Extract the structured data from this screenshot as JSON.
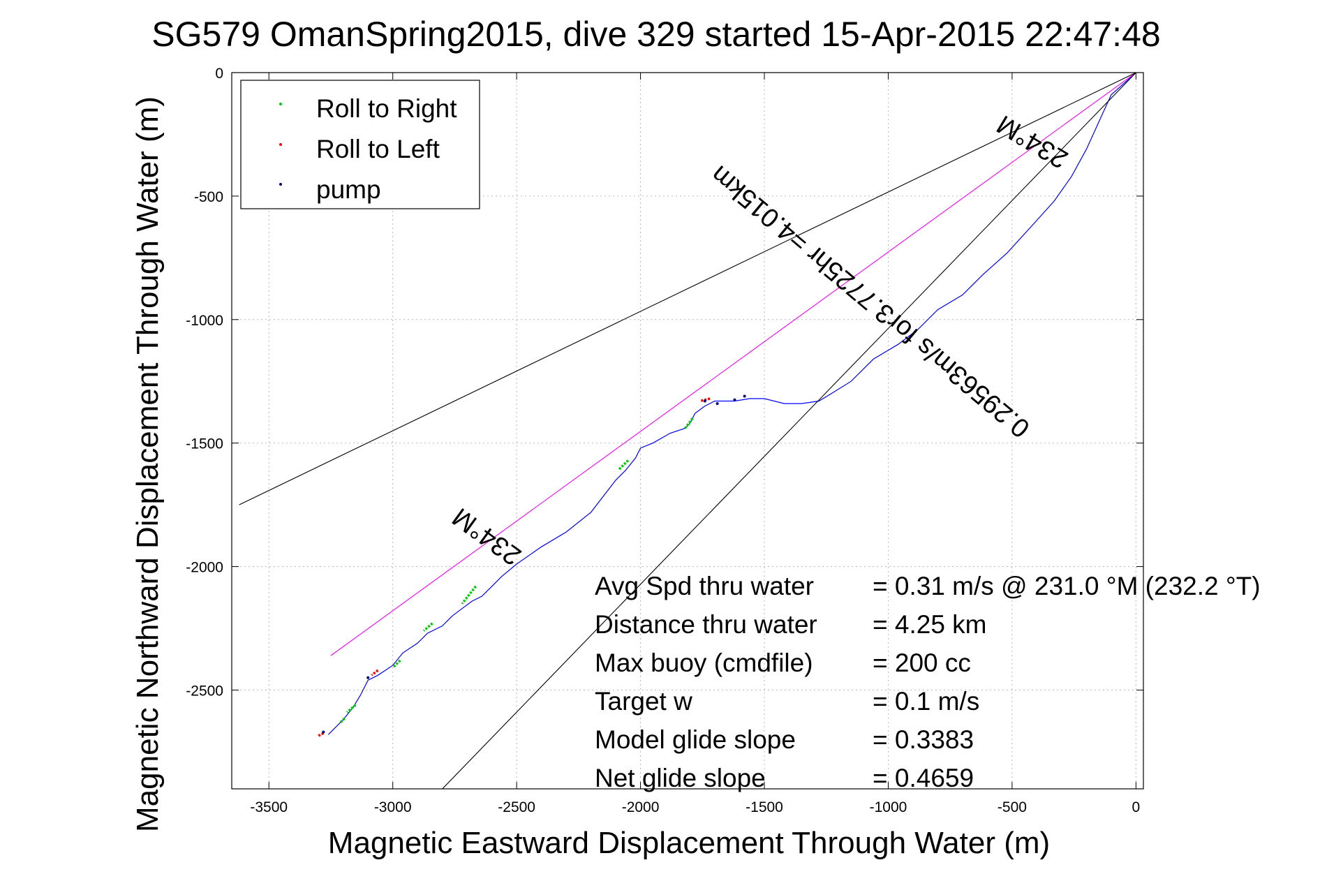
{
  "chart_data": {
    "type": "line",
    "title": "SG579 OmanSpring2015, dive 329 started 15-Apr-2015 22:47:48",
    "xlabel": "Magnetic Eastward Displacement Through Water (m)",
    "ylabel": "Magnetic Northward Displacement Through Water (m)",
    "xlim": [
      -3650,
      30
    ],
    "ylim": [
      -2900,
      0
    ],
    "x_ticks": [
      -3500,
      -3000,
      -2500,
      -2000,
      -1500,
      -1000,
      -500,
      0
    ],
    "y_ticks": [
      0,
      -500,
      -1000,
      -1500,
      -2000,
      -2500
    ],
    "x_tick_labels": [
      "-3500",
      "-3000",
      "-2500",
      "-2000",
      "-1500",
      "-1000",
      "-500",
      "0"
    ],
    "y_tick_labels": [
      "0",
      "-500",
      "-1000",
      "-1500",
      "-2000",
      "-2500"
    ],
    "grid": true,
    "legend_position": "top-left",
    "legend": [
      {
        "label": "Roll to Right",
        "color": "#00cc00"
      },
      {
        "label": "Roll to Left",
        "color": "#ff0000"
      },
      {
        "label": "pump",
        "color": "#000080"
      }
    ],
    "series": [
      {
        "color": "#0000ff",
        "x": [
          0,
          -100,
          -150,
          -200,
          -260,
          -330,
          -420,
          -520,
          -620,
          -700,
          -800,
          -880,
          -960,
          -1060,
          -1150,
          -1230,
          -1280,
          -1350,
          -1420,
          -1500,
          -1560,
          -1620,
          -1700,
          -1740,
          -1780,
          -1800,
          -1820,
          -1880,
          -1950,
          -2000,
          -2020,
          -2060,
          -2100,
          -2200,
          -2300,
          -2400,
          -2500,
          -2560,
          -2600,
          -2640,
          -2680,
          -2720,
          -2760,
          -2800,
          -2860,
          -2900,
          -2960,
          -3000,
          -3060,
          -3100,
          -3130,
          -3160,
          -3200,
          -3240,
          -3260
        ],
        "y": [
          0,
          -90,
          -200,
          -310,
          -420,
          -520,
          -620,
          -730,
          -820,
          -900,
          -960,
          -1040,
          -1100,
          -1160,
          -1250,
          -1300,
          -1330,
          -1340,
          -1340,
          -1320,
          -1320,
          -1330,
          -1330,
          -1350,
          -1380,
          -1420,
          -1440,
          -1460,
          -1500,
          -1520,
          -1560,
          -1610,
          -1650,
          -1780,
          -1860,
          -1920,
          -1990,
          -2040,
          -2080,
          -2120,
          -2140,
          -2170,
          -2200,
          -2240,
          -2270,
          -2310,
          -2350,
          -2400,
          -2440,
          -2460,
          -2520,
          -2570,
          -2620,
          -2660,
          -2680
        ]
      },
      {
        "color": "#ff00ff",
        "x": [
          0,
          -3250
        ],
        "y": [
          0,
          -2360
        ]
      },
      {
        "color": "#000000",
        "x": [
          0,
          -3620
        ],
        "y": [
          0,
          -1750
        ]
      },
      {
        "color": "#000000",
        "x": [
          0,
          -2800
        ],
        "y": [
          0,
          -2900
        ]
      }
    ],
    "roll_right_segments": [
      {
        "x": [
          -3150,
          -3185
        ],
        "y": [
          -2560,
          -2590
        ]
      },
      {
        "x": [
          -2970,
          -3000
        ],
        "y": [
          -2380,
          -2410
        ]
      },
      {
        "x": [
          -2840,
          -2875
        ],
        "y": [
          -2230,
          -2260
        ]
      },
      {
        "x": [
          -2665,
          -2720
        ],
        "y": [
          -2080,
          -2150
        ]
      },
      {
        "x": [
          -2050,
          -2090
        ],
        "y": [
          -1570,
          -1610
        ]
      },
      {
        "x": [
          -1790,
          -1820
        ],
        "y": [
          -1400,
          -1440
        ]
      },
      {
        "x": [
          -3195,
          -3215
        ],
        "y": [
          -2615,
          -2635
        ]
      }
    ],
    "roll_left_segments": [
      {
        "x": [
          -3060,
          -3085
        ],
        "y": [
          -2420,
          -2440
        ]
      },
      {
        "x": [
          -1720,
          -1760
        ],
        "y": [
          -1320,
          -1330
        ]
      },
      {
        "x": [
          -3280,
          -3300
        ],
        "y": [
          -2675,
          -2685
        ]
      }
    ],
    "pump_points": {
      "x": [
        -3100,
        -3280,
        -1690,
        -1740,
        -1620,
        -1580
      ],
      "y": [
        -2450,
        -2670,
        -1340,
        -1330,
        -1325,
        -1310
      ]
    },
    "annotations": [
      {
        "text": "234°M",
        "x": -2600,
        "y": -1850,
        "angle_deg": 216
      },
      {
        "text": "234°M",
        "x": -400,
        "y": -250,
        "angle_deg": 211
      },
      {
        "text": "0.29563m/s for3.7725hr =4.015km",
        "x": -1050,
        "y": -900,
        "angle_deg": 220
      }
    ],
    "stats": [
      {
        "label": "Avg Spd thru water",
        "value": "=  0.31 m/s @ 231.0 °M (232.2 °T)"
      },
      {
        "label": "Distance thru water",
        "value": "=  4.25 km"
      },
      {
        "label": "Max buoy (cmdfile)",
        "value": "= 200 cc"
      },
      {
        "label": "Target w",
        "value": "= 0.1 m/s"
      },
      {
        "label": "Model glide slope",
        "value": "= 0.3383"
      },
      {
        "label": "Net glide slope",
        "value": "= 0.4659"
      }
    ]
  }
}
